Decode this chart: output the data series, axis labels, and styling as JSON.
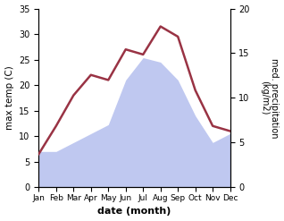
{
  "months": [
    "Jan",
    "Feb",
    "Mar",
    "Apr",
    "May",
    "Jun",
    "Jul",
    "Aug",
    "Sep",
    "Oct",
    "Nov",
    "Dec"
  ],
  "month_indices": [
    0,
    1,
    2,
    3,
    4,
    5,
    6,
    7,
    8,
    9,
    10,
    11
  ],
  "temperature": [
    6.5,
    12.0,
    18.0,
    22.0,
    21.0,
    27.0,
    26.0,
    31.5,
    29.5,
    19.0,
    12.0,
    11.0
  ],
  "precipitation": [
    4.0,
    4.0,
    5.0,
    6.0,
    7.0,
    12.0,
    14.5,
    14.0,
    12.0,
    8.0,
    5.0,
    6.0
  ],
  "temp_color": "#993344",
  "precip_fill_color": "#bfc8f0",
  "ylabel_left": "max temp (C)",
  "ylabel_right": "med. precipitation\n(kg/m2)",
  "xlabel": "date (month)",
  "ylim_left": [
    0,
    35
  ],
  "ylim_right": [
    0,
    20
  ],
  "yticks_left": [
    0,
    5,
    10,
    15,
    20,
    25,
    30,
    35
  ],
  "yticks_right": [
    0,
    5,
    10,
    15,
    20
  ],
  "background_color": "#ffffff"
}
